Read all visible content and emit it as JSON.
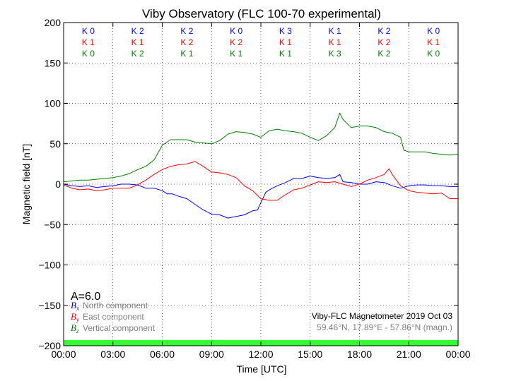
{
  "chart_data": {
    "type": "line",
    "title": "Viby Observatory (FLC 100-70 experimental)",
    "xlabel": "Time [UTC]",
    "ylabel": "Magnetic field [nT]",
    "xlim": [
      0,
      24
    ],
    "ylim": [
      -200,
      200
    ],
    "grid": true,
    "x_ticks": [
      0,
      3,
      6,
      9,
      12,
      15,
      18,
      21,
      24
    ],
    "x_tick_labels": [
      "00:00",
      "03:00",
      "06:00",
      "09:00",
      "12:00",
      "15:00",
      "18:00",
      "21:00",
      "00:00"
    ],
    "y_ticks": [
      -200,
      -150,
      -100,
      -50,
      0,
      50,
      100,
      150,
      200
    ],
    "y_tick_labels": [
      "−200",
      "−150",
      "−100",
      "−50",
      "0",
      "50",
      "100",
      "150",
      "200"
    ],
    "series": [
      {
        "name": "North component",
        "symbol": "B",
        "subscript": "x",
        "color": "#0000ff",
        "points": [
          [
            0,
            0
          ],
          [
            0.5,
            -2
          ],
          [
            1,
            -3
          ],
          [
            1.5,
            -2
          ],
          [
            2,
            -4
          ],
          [
            2.5,
            -3
          ],
          [
            3,
            -2
          ],
          [
            3.5,
            0
          ],
          [
            4,
            0
          ],
          [
            4.5,
            -1
          ],
          [
            5,
            -5
          ],
          [
            5.5,
            -5
          ],
          [
            6,
            -8
          ],
          [
            6.3,
            -12
          ],
          [
            6.6,
            -12
          ],
          [
            7,
            -15
          ],
          [
            7.5,
            -18
          ],
          [
            8,
            -25
          ],
          [
            8.5,
            -32
          ],
          [
            9,
            -37
          ],
          [
            9.5,
            -38
          ],
          [
            10,
            -42
          ],
          [
            10.5,
            -40
          ],
          [
            11,
            -38
          ],
          [
            11.5,
            -33
          ],
          [
            11.8,
            -32
          ],
          [
            12,
            -23
          ],
          [
            12.3,
            -10
          ],
          [
            12.6,
            -6
          ],
          [
            13,
            -2
          ],
          [
            13.5,
            2
          ],
          [
            14,
            7
          ],
          [
            14.5,
            7
          ],
          [
            15,
            10
          ],
          [
            15.5,
            8
          ],
          [
            16,
            7
          ],
          [
            16.5,
            8
          ],
          [
            16.8,
            12
          ],
          [
            17,
            3
          ],
          [
            17.5,
            2
          ],
          [
            18,
            0
          ],
          [
            18.5,
            0
          ],
          [
            19,
            3
          ],
          [
            19.5,
            2
          ],
          [
            20,
            -2
          ],
          [
            20.5,
            -5
          ],
          [
            21,
            -2
          ],
          [
            21.5,
            -1
          ],
          [
            22,
            -1
          ],
          [
            22.5,
            -2
          ],
          [
            23,
            -2
          ],
          [
            23.5,
            -3
          ],
          [
            24,
            -3
          ]
        ]
      },
      {
        "name": "East component",
        "symbol": "B",
        "subscript": "y",
        "color": "#ff0000",
        "points": [
          [
            0,
            -1
          ],
          [
            0.5,
            -5
          ],
          [
            1,
            -7
          ],
          [
            1.5,
            -6
          ],
          [
            2,
            -8
          ],
          [
            2.5,
            -7
          ],
          [
            3,
            -5
          ],
          [
            3.5,
            -5
          ],
          [
            4,
            -5
          ],
          [
            4.5,
            -1
          ],
          [
            5,
            5
          ],
          [
            5.5,
            12
          ],
          [
            6,
            18
          ],
          [
            6.5,
            22
          ],
          [
            7,
            24
          ],
          [
            7.5,
            25
          ],
          [
            8,
            28
          ],
          [
            8.5,
            22
          ],
          [
            9,
            15
          ],
          [
            9.5,
            14
          ],
          [
            10,
            12
          ],
          [
            10.5,
            8
          ],
          [
            11,
            -2
          ],
          [
            11.5,
            -8
          ],
          [
            12,
            -18
          ],
          [
            12.5,
            -20
          ],
          [
            13,
            -20
          ],
          [
            13.5,
            -13
          ],
          [
            14,
            -7
          ],
          [
            14.5,
            -5
          ],
          [
            15,
            -1
          ],
          [
            15.5,
            3
          ],
          [
            16,
            2
          ],
          [
            16.5,
            3
          ],
          [
            17,
            0
          ],
          [
            17.5,
            -3
          ],
          [
            18,
            0
          ],
          [
            18.5,
            5
          ],
          [
            19,
            8
          ],
          [
            19.5,
            12
          ],
          [
            19.8,
            19
          ],
          [
            20,
            12
          ],
          [
            20.5,
            -2
          ],
          [
            21,
            -8
          ],
          [
            21.5,
            -10
          ],
          [
            22,
            -11
          ],
          [
            22.5,
            -12
          ],
          [
            23,
            -11
          ],
          [
            23.5,
            -18
          ],
          [
            24,
            -18
          ]
        ]
      },
      {
        "name": "Vertical component",
        "symbol": "B",
        "subscript": "z",
        "color": "#008000",
        "points": [
          [
            0,
            3
          ],
          [
            0.5,
            4
          ],
          [
            1,
            5
          ],
          [
            1.5,
            5
          ],
          [
            2,
            6
          ],
          [
            2.5,
            7
          ],
          [
            3,
            8
          ],
          [
            3.5,
            10
          ],
          [
            4,
            13
          ],
          [
            4.5,
            18
          ],
          [
            5,
            22
          ],
          [
            5.5,
            30
          ],
          [
            6,
            48
          ],
          [
            6.5,
            55
          ],
          [
            7,
            55
          ],
          [
            7.5,
            55
          ],
          [
            8,
            52
          ],
          [
            8.5,
            51
          ],
          [
            9,
            50
          ],
          [
            9.5,
            54
          ],
          [
            10,
            62
          ],
          [
            10.5,
            65
          ],
          [
            11,
            64
          ],
          [
            11.5,
            62
          ],
          [
            12,
            58
          ],
          [
            12.5,
            66
          ],
          [
            13,
            68
          ],
          [
            13.5,
            66
          ],
          [
            14,
            65
          ],
          [
            14.5,
            63
          ],
          [
            15,
            58
          ],
          [
            15.5,
            54
          ],
          [
            16,
            60
          ],
          [
            16.5,
            70
          ],
          [
            16.8,
            88
          ],
          [
            17,
            80
          ],
          [
            17.5,
            70
          ],
          [
            18,
            72
          ],
          [
            18.5,
            72
          ],
          [
            19,
            70
          ],
          [
            19.5,
            65
          ],
          [
            20,
            63
          ],
          [
            20.5,
            58
          ],
          [
            20.7,
            42
          ],
          [
            21,
            40
          ],
          [
            21.5,
            40
          ],
          [
            22,
            40
          ],
          [
            22.5,
            38
          ],
          [
            23,
            37
          ],
          [
            23.5,
            36
          ],
          [
            24,
            37
          ]
        ]
      }
    ],
    "k_indices": {
      "North": [
        "K 0",
        "K 2",
        "K 2",
        "K 0",
        "K 3",
        "K 1",
        "K 2",
        "K 0"
      ],
      "East": [
        "K 1",
        "K 1",
        "K 2",
        "K 2",
        "K 1",
        "K 1",
        "K 2",
        "K 1"
      ],
      "Vertical": [
        "K 0",
        "K 2",
        "K 1",
        "K 1",
        "K 1",
        "K 3",
        "K 2",
        "K 0"
      ]
    },
    "annotation_a": "A=6.0",
    "info_line1": "Viby-FLC Magnetometer 2019 Oct 03",
    "info_line2": "59.46°N, 17.89°E - 57.86°N (magn.)",
    "status_bar_color": "#33ff33",
    "status_bar_level": [
      -200,
      -193
    ]
  }
}
